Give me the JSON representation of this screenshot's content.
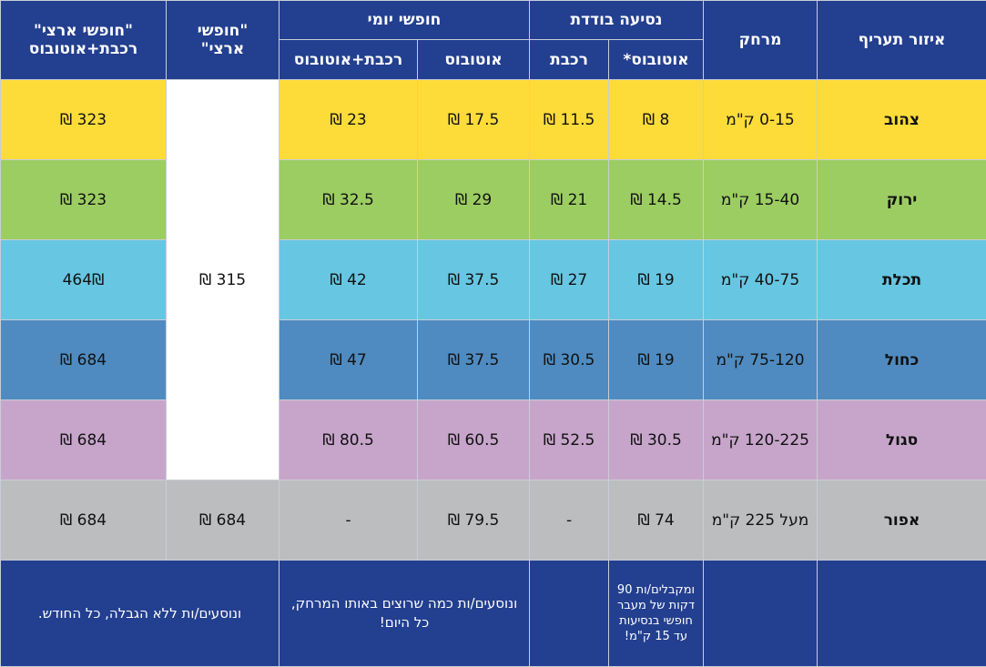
{
  "headers": {
    "zone": "איזור תעריף",
    "distance": "מרחק",
    "single": "נסיעה בודדת",
    "single_bus": "אוטובוס*",
    "single_train": "רכבת",
    "daily": "חופשי יומי",
    "daily_bus": "אוטובוס",
    "daily_train_bus": "רכבת+אוטובוס",
    "national_free_l1": "\"חופשי",
    "national_free_l2": "ארצי\"",
    "national_tb_l1": "\"חופשי ארצי\"",
    "national_tb_l2": "רכבת+אוטובוס"
  },
  "rows": [
    {
      "zone": "צהוב",
      "distance": "0-15 ק\"מ",
      "single_bus": "8 ₪",
      "single_train": "11.5 ₪",
      "daily_bus": "17.5 ₪",
      "daily_train_bus": "23 ₪",
      "national_tb": "323 ₪"
    },
    {
      "zone": "ירוק",
      "distance": "15-40 ק\"מ",
      "single_bus": "14.5 ₪",
      "single_train": "21 ₪",
      "daily_bus": "29 ₪",
      "daily_train_bus": "32.5 ₪",
      "national_tb": "323 ₪"
    },
    {
      "zone": "תכלת",
      "distance": "40-75 ק\"מ",
      "single_bus": "19 ₪",
      "single_train": "27 ₪",
      "daily_bus": "37.5 ₪",
      "daily_train_bus": "42 ₪",
      "national_tb": "464₪"
    },
    {
      "zone": "כחול",
      "distance": "75-120 ק\"מ",
      "single_bus": "19 ₪",
      "single_train": "30.5 ₪",
      "daily_bus": "37.5 ₪",
      "daily_train_bus": "47 ₪",
      "national_tb": "684 ₪"
    },
    {
      "zone": "סגול",
      "distance": "120-225 ק\"מ",
      "single_bus": "30.5 ₪",
      "single_train": "52.5 ₪",
      "daily_bus": "60.5 ₪",
      "daily_train_bus": "80.5 ₪",
      "national_tb": "684 ₪"
    },
    {
      "zone": "אפור",
      "distance": "מעל 225 ק\"מ",
      "single_bus": "74 ₪",
      "single_train": "-",
      "daily_bus": "79.5 ₪",
      "daily_train_bus": "-",
      "national_free": "684 ₪",
      "national_tb": "684 ₪"
    }
  ],
  "national_free_merged": "315 ₪",
  "footer": {
    "single_bus_note": "ומקבלים/ות 90 דקות של מעבר חופשי בנסיעות עד 15 ק\"מ!",
    "daily_note": "ונוסעים/ות כמה שרוצים באותו המרחק, כל היום!",
    "national_note": "ונוסעים/ות ללא הגבלה, כל החודש."
  }
}
